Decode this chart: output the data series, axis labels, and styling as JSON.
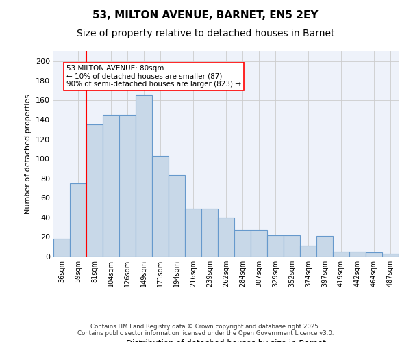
{
  "title": "53, MILTON AVENUE, BARNET, EN5 2EY",
  "subtitle": "Size of property relative to detached houses in Barnet",
  "xlabel": "Distribution of detached houses by size in Barnet",
  "ylabel": "Number of detached properties",
  "categories": [
    "36sqm",
    "59sqm",
    "81sqm",
    "104sqm",
    "126sqm",
    "149sqm",
    "171sqm",
    "194sqm",
    "216sqm",
    "239sqm",
    "262sqm",
    "284sqm",
    "307sqm",
    "329sqm",
    "352sqm",
    "374sqm",
    "397sqm",
    "419sqm",
    "442sqm",
    "464sqm",
    "487sqm"
  ],
  "heights": [
    18,
    75,
    135,
    145,
    145,
    165,
    103,
    83,
    49,
    49,
    40,
    27,
    27,
    22,
    22,
    11,
    21,
    5,
    5,
    4,
    3
  ],
  "bar_color": "#c8d8e8",
  "bar_edge_color": "#6699cc",
  "red_line_index": 2,
  "annotation_text": "53 MILTON AVENUE: 80sqm\n← 10% of detached houses are smaller (87)\n90% of semi-detached houses are larger (823) →",
  "ylim": [
    0,
    210
  ],
  "yticks": [
    0,
    20,
    40,
    60,
    80,
    100,
    120,
    140,
    160,
    180,
    200
  ],
  "grid_color": "#cccccc",
  "footer1": "Contains HM Land Registry data © Crown copyright and database right 2025.",
  "footer2": "Contains public sector information licensed under the Open Government Licence v3.0.",
  "bg_color": "#eef2fa",
  "title_fontsize": 11,
  "subtitle_fontsize": 10
}
